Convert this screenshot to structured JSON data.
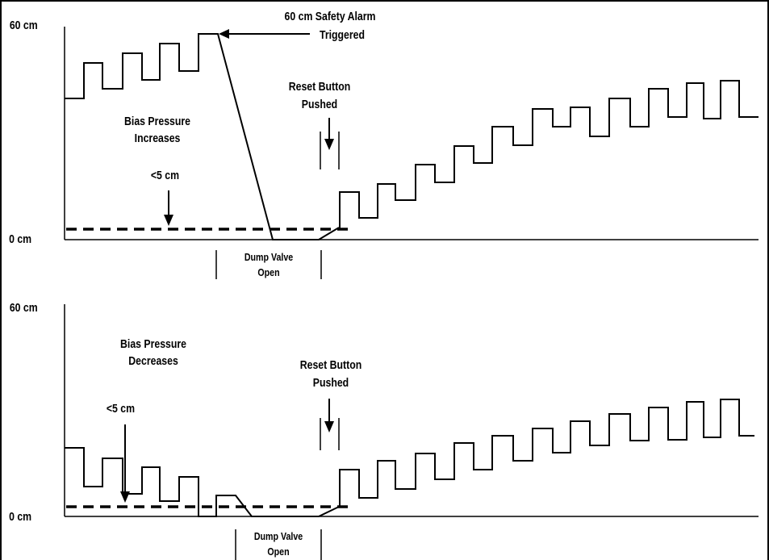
{
  "top": {
    "y_max_label": "60 cm",
    "y_zero_label": "0 cm",
    "alarm_label_line1": "60 cm Safety Alarm",
    "alarm_label_line2": "Triggered",
    "bias_label_line1": "Bias Pressure",
    "bias_label_line2": "Increases",
    "threshold_label": "<5 cm",
    "reset_label_line1": "Reset Button",
    "reset_label_line2": "Pushed",
    "dump_label_line1": "Dump Valve",
    "dump_label_line2": "Open"
  },
  "bottom": {
    "y_max_label": "60 cm",
    "y_zero_label": "0 cm",
    "bias_label_line1": "Bias Pressure",
    "bias_label_line2": "Decreases",
    "threshold_label": "<5 cm",
    "reset_label_line1": "Reset Button",
    "reset_label_line2": "Pushed",
    "dump_label_line1": "Dump Valve",
    "dump_label_line2": "Open"
  }
}
